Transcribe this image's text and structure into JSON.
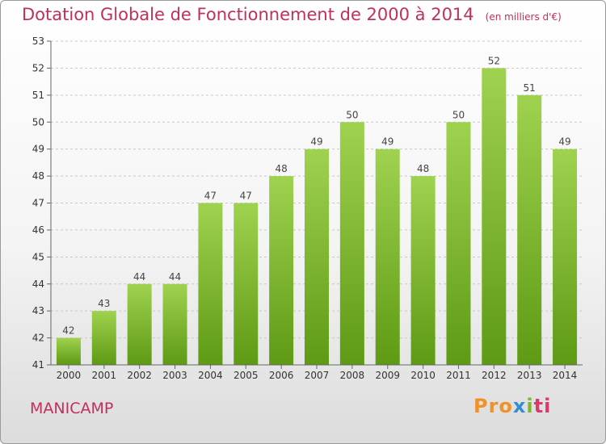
{
  "title": "Dotation Globale de Fonctionnement de 2000 à 2014",
  "unit": "(en milliers d'€)",
  "commune": "MANICAMP",
  "logo": {
    "p1": "Pro",
    "p2": "x",
    "p3": "i",
    "p4": "ti"
  },
  "colors": {
    "title": "#c0305a",
    "bar_top": "#9fd24f",
    "bar_bottom": "#5e9a14"
  },
  "chart_data": {
    "type": "bar",
    "title": "Dotation Globale de Fonctionnement de 2000 à 2014",
    "categories": [
      "2000",
      "2001",
      "2002",
      "2003",
      "2004",
      "2005",
      "2006",
      "2007",
      "2008",
      "2009",
      "2010",
      "2011",
      "2012",
      "2013",
      "2014"
    ],
    "values": [
      42,
      43,
      44,
      44,
      47,
      47,
      48,
      49,
      50,
      49,
      48,
      50,
      52,
      51,
      49
    ],
    "ylim": [
      41,
      53
    ],
    "yticks": [
      41,
      42,
      43,
      44,
      45,
      46,
      47,
      48,
      49,
      50,
      51,
      52,
      53
    ],
    "grid": "horizontal-dashed",
    "legend": "none"
  }
}
